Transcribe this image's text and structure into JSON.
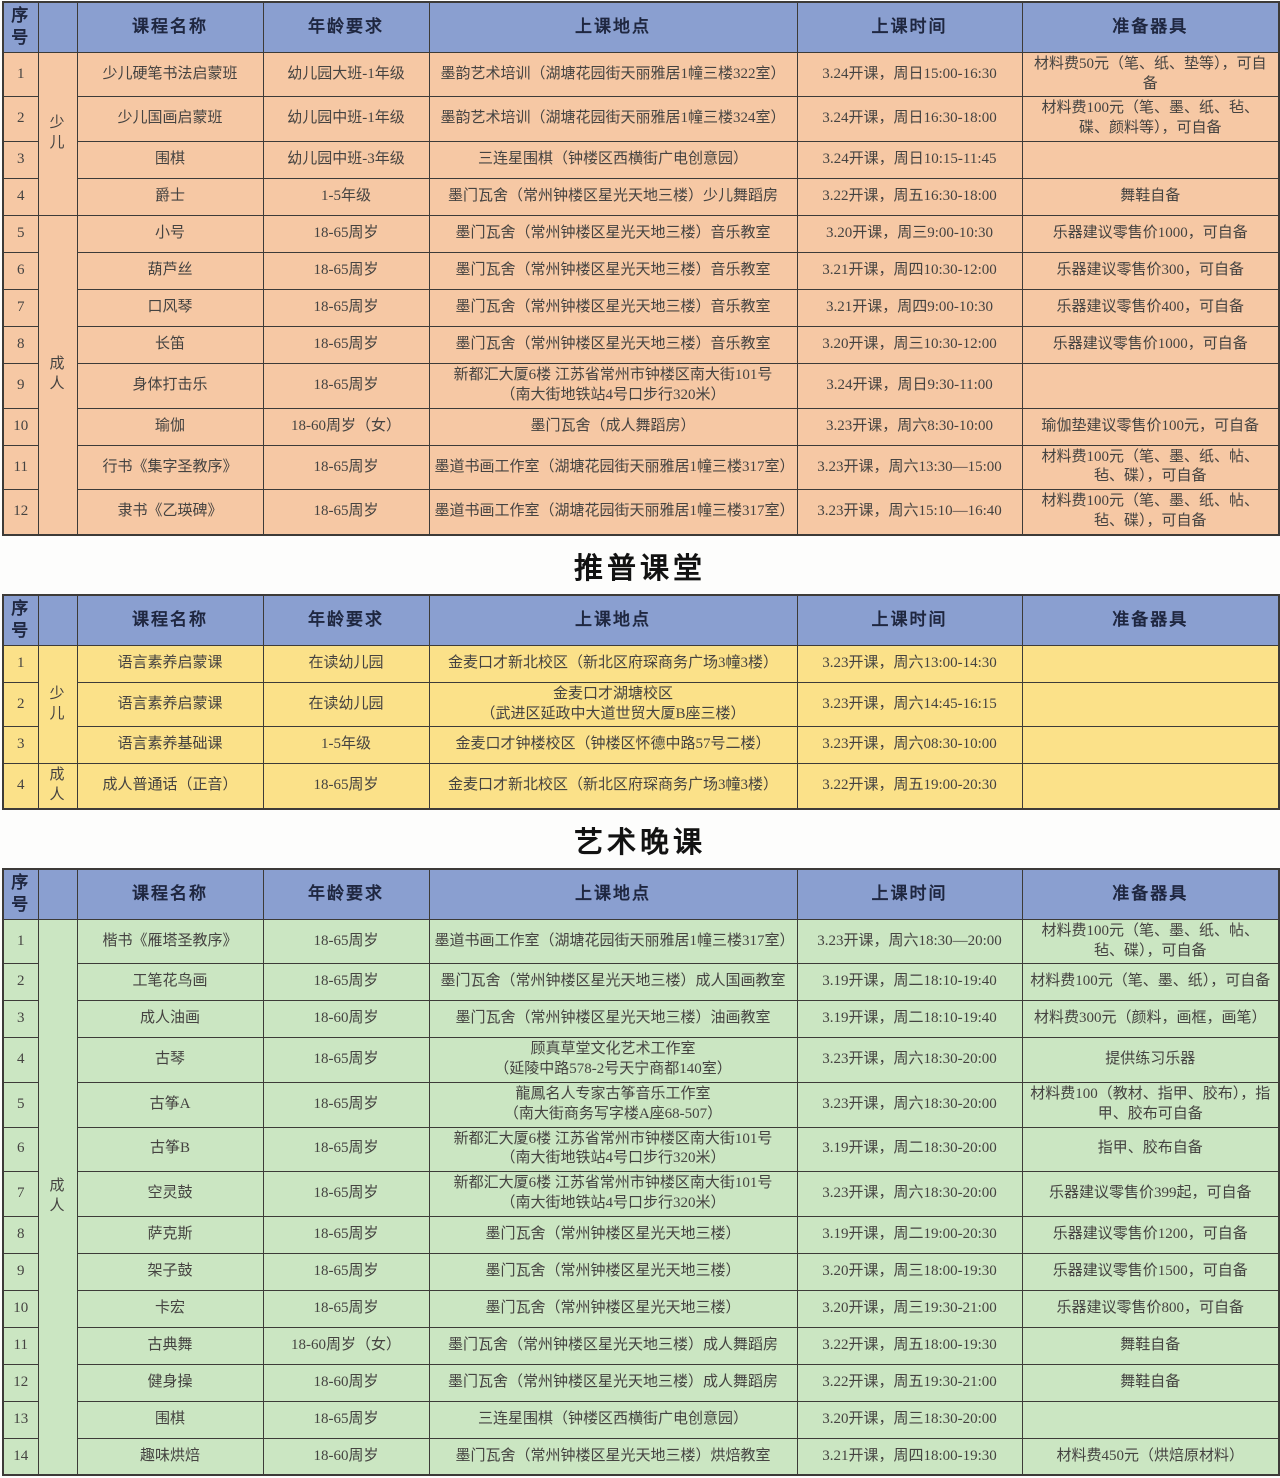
{
  "colors": {
    "header_bg": "#8a9fd0",
    "header_text": "#1f2740",
    "orange_row_bg": "#f6c8a4",
    "yellow_row_bg": "#fbe189",
    "green_row_bg": "#cbe6c2",
    "border": "#3d3b38",
    "body_text": "#454341"
  },
  "columns": [
    "序号",
    "",
    "课程名称",
    "年龄要求",
    "上课地点",
    "上课时间",
    "准备器具"
  ],
  "tables": [
    {
      "id": "kids-adults-courses",
      "title": "",
      "theme": "orange",
      "groups": [
        {
          "label": "少儿",
          "span": 4
        },
        {
          "label": "成人",
          "span": 8
        }
      ],
      "rows": [
        {
          "num": "1",
          "name": "少儿硬笔书法启蒙班",
          "age": "幼儿园大班-1年级",
          "location": "墨韵艺术培训（湖塘花园街天丽雅居1幢三楼322室）",
          "time": "3.24开课，周日15:00-16:30",
          "equipment": "材料费50元（笔、纸、垫等），可自备"
        },
        {
          "num": "2",
          "name": "少儿国画启蒙班",
          "age": "幼儿园中班-1年级",
          "location": "墨韵艺术培训（湖塘花园街天丽雅居1幢三楼324室）",
          "time": "3.24开课，周日16:30-18:00",
          "equipment": "材料费100元（笔、墨、纸、毡、碟、颜料等），可自备"
        },
        {
          "num": "3",
          "name": "围棋",
          "age": "幼儿园中班-3年级",
          "location": "三连星围棋（钟楼区西横街广电创意园）",
          "time": "3.24开课，周日10:15-11:45",
          "equipment": ""
        },
        {
          "num": "4",
          "name": "爵士",
          "age": "1-5年级",
          "location": "墨门瓦舍（常州钟楼区星光天地三楼）少儿舞蹈房",
          "time": "3.22开课，周五16:30-18:00",
          "equipment": "舞鞋自备"
        },
        {
          "num": "5",
          "name": "小号",
          "age": "18-65周岁",
          "location": "墨门瓦舍（常州钟楼区星光天地三楼）音乐教室",
          "time": "3.20开课，周三9:00-10:30",
          "equipment": "乐器建议零售价1000，可自备"
        },
        {
          "num": "6",
          "name": "葫芦丝",
          "age": "18-65周岁",
          "location": "墨门瓦舍（常州钟楼区星光天地三楼）音乐教室",
          "time": "3.21开课，周四10:30-12:00",
          "equipment": "乐器建议零售价300，可自备"
        },
        {
          "num": "7",
          "name": "口风琴",
          "age": "18-65周岁",
          "location": "墨门瓦舍（常州钟楼区星光天地三楼）音乐教室",
          "time": "3.21开课，周四9:00-10:30",
          "equipment": "乐器建议零售价400，可自备"
        },
        {
          "num": "8",
          "name": "长笛",
          "age": "18-65周岁",
          "location": "墨门瓦舍（常州钟楼区星光天地三楼）音乐教室",
          "time": "3.20开课，周三10:30-12:00",
          "equipment": "乐器建议零售价1000，可自备"
        },
        {
          "num": "9",
          "name": "身体打击乐",
          "age": "18-65周岁",
          "location": "新都汇大厦6楼 江苏省常州市钟楼区南大街101号\n（南大街地铁站4号口步行320米）",
          "time": "3.24开课，周日9:30-11:00",
          "equipment": ""
        },
        {
          "num": "10",
          "name": "瑜伽",
          "age": "18-60周岁（女）",
          "location": "墨门瓦舍（成人舞蹈房）",
          "time": "3.23开课，周六8:30-10:00",
          "equipment": "瑜伽垫建议零售价100元，可自备"
        },
        {
          "num": "11",
          "name": "行书《集字圣教序》",
          "age": "18-65周岁",
          "location": "墨道书画工作室（湖塘花园街天丽雅居1幢三楼317室）",
          "time": "3.23开课，周六13:30—15:00",
          "equipment": "材料费100元（笔、墨、纸、帖、毡、碟），可自备"
        },
        {
          "num": "12",
          "name": "隶书《乙瑛碑》",
          "age": "18-65周岁",
          "location": "墨道书画工作室（湖塘花园街天丽雅居1幢三楼317室）",
          "time": "3.23开课，周六15:10—16:40",
          "equipment": "材料费100元（笔、墨、纸、帖、毡、碟），可自备"
        }
      ]
    },
    {
      "id": "putonghua-courses",
      "title": "推普课堂",
      "theme": "yellow",
      "groups": [
        {
          "label": "少儿",
          "span": 3
        },
        {
          "label": "成人",
          "span": 1
        }
      ],
      "rows": [
        {
          "num": "1",
          "name": "语言素养启蒙课",
          "age": "在读幼儿园",
          "location": "金麦口才新北校区（新北区府琛商务广场3幢3楼）",
          "time": "3.23开课，周六13:00-14:30",
          "equipment": ""
        },
        {
          "num": "2",
          "name": "语言素养启蒙课",
          "age": "在读幼儿园",
          "location": "金麦口才湖塘校区\n（武进区延政中大道世贸大厦B座三楼）",
          "time": "3.23开课，周六14:45-16:15",
          "equipment": ""
        },
        {
          "num": "3",
          "name": "语言素养基础课",
          "age": "1-5年级",
          "location": "金麦口才钟楼校区（钟楼区怀德中路57号二楼）",
          "time": "3.23开课，周六08:30-10:00",
          "equipment": ""
        },
        {
          "num": "4",
          "name": "成人普通话（正音）",
          "age": "18-65周岁",
          "location": "金麦口才新北校区（新北区府琛商务广场3幢3楼）",
          "time": "3.22开课，周五19:00-20:30",
          "equipment": ""
        }
      ]
    },
    {
      "id": "art-evening-courses",
      "title": "艺术晚课",
      "theme": "green",
      "groups": [
        {
          "label": "成人",
          "span": 14
        }
      ],
      "rows": [
        {
          "num": "1",
          "name": "楷书《雁塔圣教序》",
          "age": "18-65周岁",
          "location": "墨道书画工作室（湖塘花园街天丽雅居1幢三楼317室）",
          "time": "3.23开课，周六18:30—20:00",
          "equipment": "材料费100元（笔、墨、纸、帖、毡、碟），可自备"
        },
        {
          "num": "2",
          "name": "工笔花鸟画",
          "age": "18-65周岁",
          "location": "墨门瓦舍（常州钟楼区星光天地三楼）成人国画教室",
          "time": "3.19开课，周二18:10-19:40",
          "equipment": "材料费100元（笔、墨、纸），可自备"
        },
        {
          "num": "3",
          "name": "成人油画",
          "age": "18-60周岁",
          "location": "墨门瓦舍（常州钟楼区星光天地三楼）油画教室",
          "time": "3.19开课，周二18:10-19:40",
          "equipment": "材料费300元（颜料，画框，画笔）"
        },
        {
          "num": "4",
          "name": "古琴",
          "age": "18-65周岁",
          "location": "顾真草堂文化艺术工作室\n（延陵中路578-2号天宁商都140室）",
          "time": "3.23开课，周六18:30-20:00",
          "equipment": "提供练习乐器"
        },
        {
          "num": "5",
          "name": "古筝A",
          "age": "18-65周岁",
          "location": "龍鳳名人专家古筝音乐工作室\n（南大街商务写字楼A座68-507）",
          "time": "3.23开课，周六18:30-20:00",
          "equipment": "材料费100（教材、指甲、胶布），指甲、胶布可自备"
        },
        {
          "num": "6",
          "name": "古筝B",
          "age": "18-65周岁",
          "location": "新都汇大厦6楼 江苏省常州市钟楼区南大街101号\n（南大街地铁站4号口步行320米）",
          "time": "3.19开课，周二18:30-20:00",
          "equipment": "指甲、胶布自备"
        },
        {
          "num": "7",
          "name": "空灵鼓",
          "age": "18-65周岁",
          "location": "新都汇大厦6楼 江苏省常州市钟楼区南大街101号\n（南大街地铁站4号口步行320米）",
          "time": "3.23开课，周六18:30-20:00",
          "equipment": "乐器建议零售价399起，可自备"
        },
        {
          "num": "8",
          "name": "萨克斯",
          "age": "18-65周岁",
          "location": "墨门瓦舍（常州钟楼区星光天地三楼）",
          "time": "3.19开课，周二19:00-20:30",
          "equipment": "乐器建议零售价1200，可自备"
        },
        {
          "num": "9",
          "name": "架子鼓",
          "age": "18-65周岁",
          "location": "墨门瓦舍（常州钟楼区星光天地三楼）",
          "time": "3.20开课，周三18:00-19:30",
          "equipment": "乐器建议零售价1500，可自备"
        },
        {
          "num": "10",
          "name": "卡宏",
          "age": "18-65周岁",
          "location": "墨门瓦舍（常州钟楼区星光天地三楼）",
          "time": "3.20开课，周三19:30-21:00",
          "equipment": "乐器建议零售价800，可自备"
        },
        {
          "num": "11",
          "name": "古典舞",
          "age": "18-60周岁（女）",
          "location": "墨门瓦舍（常州钟楼区星光天地三楼）成人舞蹈房",
          "time": "3.22开课，周五18:00-19:30",
          "equipment": "舞鞋自备"
        },
        {
          "num": "12",
          "name": "健身操",
          "age": "18-60周岁",
          "location": "墨门瓦舍（常州钟楼区星光天地三楼）成人舞蹈房",
          "time": "3.22开课，周五19:30-21:00",
          "equipment": "舞鞋自备"
        },
        {
          "num": "13",
          "name": "围棋",
          "age": "18-65周岁",
          "location": "三连星围棋（钟楼区西横街广电创意园）",
          "time": "3.20开课，周三18:30-20:00",
          "equipment": ""
        },
        {
          "num": "14",
          "name": "趣味烘焙",
          "age": "18-60周岁",
          "location": "墨门瓦舍（常州钟楼区星光天地三楼）烘焙教室",
          "time": "3.21开课，周四18:00-19:30",
          "equipment": "材料费450元（烘焙原材料）"
        }
      ]
    }
  ]
}
